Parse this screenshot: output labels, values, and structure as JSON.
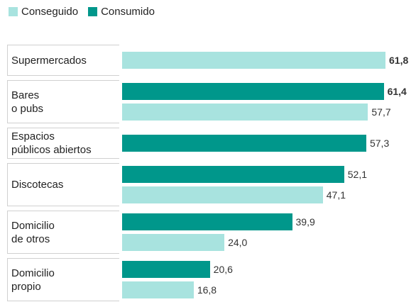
{
  "chart_data": {
    "type": "bar",
    "orientation": "horizontal",
    "categories": [
      "Supermercados",
      "Bares\no pubs",
      "Espacios\npúblicos abiertos",
      "Discotecas",
      "Domicilio\nde otros",
      "Domicilio\npropio"
    ],
    "series": [
      {
        "name": "Conseguido",
        "color": "#a8e3df",
        "values": [
          61.8,
          57.7,
          null,
          47.1,
          24.0,
          16.8
        ],
        "value_labels": [
          "61,8",
          "57,7",
          null,
          "47,1",
          "24,0",
          "16,8"
        ]
      },
      {
        "name": "Consumido",
        "color": "#00978b",
        "values": [
          null,
          61.4,
          57.3,
          52.1,
          39.9,
          20.6
        ],
        "value_labels": [
          null,
          "61,4",
          "57,3",
          "52,1",
          "39,9",
          "20,6"
        ]
      }
    ]
  }
}
